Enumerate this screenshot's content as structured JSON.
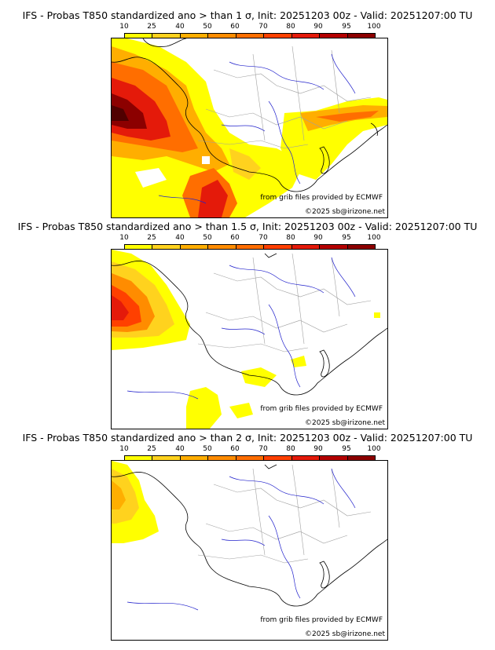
{
  "colors": {
    "scale": [
      "#ffff00",
      "#ffd21e",
      "#ffae00",
      "#ff8c00",
      "#ff6e00",
      "#ff4000",
      "#e41a0a",
      "#b40000",
      "#8c0000",
      "#500000"
    ],
    "coast": "#000000",
    "borders": "#a0a0a0",
    "rivers": "#2222cc"
  },
  "scale": {
    "labels": [
      "10",
      "25",
      "40",
      "50",
      "60",
      "70",
      "80",
      "90",
      "95",
      "100"
    ]
  },
  "panels": [
    {
      "title": "IFS - Probas T850  standardized ano > than 1 σ, Init: 20251203 00z - Valid: 20251207:00 TU",
      "source": "from grib files provided by ECMWF",
      "copyright": "©2025 sb@irizone.net"
    },
    {
      "title": "IFS - Probas T850  standardized ano > than 1.5 σ, Init: 20251203 00z - Valid: 20251207:00 TU",
      "source": "from grib files provided by ECMWF",
      "copyright": "©2025 sb@irizone.net"
    },
    {
      "title": "IFS - Probas T850  standardized ano > than 2 σ, Init: 20251203 00z - Valid: 20251207:00 TU",
      "source": "from grib files provided by ECMWF",
      "copyright": "©2025 sb@irizone.net"
    }
  ]
}
